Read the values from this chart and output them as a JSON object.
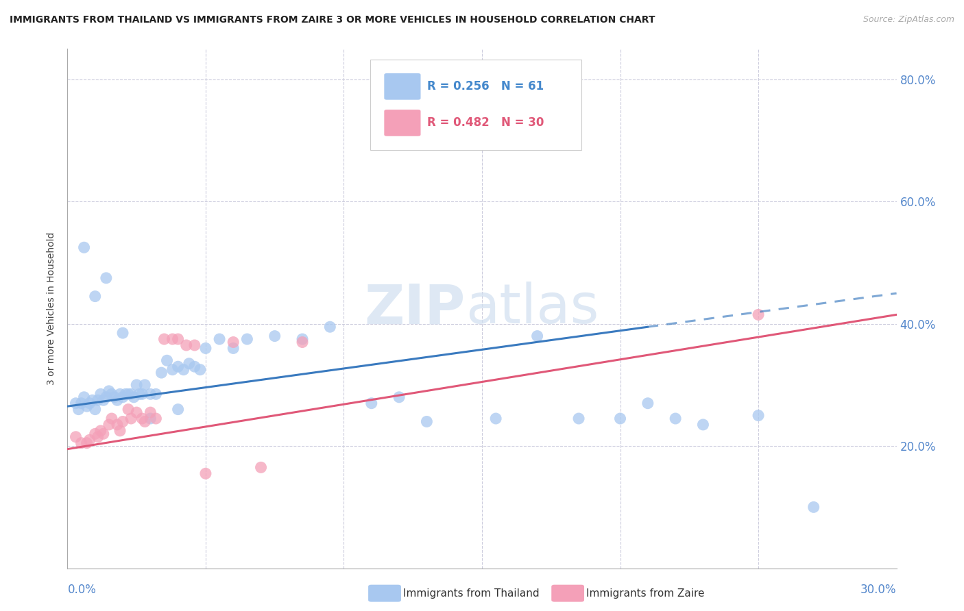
{
  "title": "IMMIGRANTS FROM THAILAND VS IMMIGRANTS FROM ZAIRE 3 OR MORE VEHICLES IN HOUSEHOLD CORRELATION CHART",
  "source": "Source: ZipAtlas.com",
  "ylabel": "3 or more Vehicles in Household",
  "xlim": [
    0.0,
    0.3
  ],
  "ylim": [
    0.0,
    0.85
  ],
  "legend1_R": "0.256",
  "legend1_N": "61",
  "legend2_R": "0.482",
  "legend2_N": "30",
  "color_thailand": "#a8c8f0",
  "color_zaire": "#f4a0b8",
  "line_color_thailand": "#3a7abf",
  "line_color_zaire": "#e05878",
  "background": "#ffffff",
  "ytick_vals": [
    0.2,
    0.4,
    0.6,
    0.8
  ],
  "ytick_labels": [
    "20.0%",
    "40.0%",
    "60.0%",
    "80.0%"
  ],
  "thailand_x": [
    0.003,
    0.004,
    0.005,
    0.006,
    0.007,
    0.008,
    0.009,
    0.01,
    0.011,
    0.012,
    0.013,
    0.014,
    0.015,
    0.016,
    0.017,
    0.018,
    0.019,
    0.02,
    0.021,
    0.022,
    0.023,
    0.024,
    0.025,
    0.026,
    0.027,
    0.028,
    0.03,
    0.032,
    0.034,
    0.036,
    0.038,
    0.04,
    0.042,
    0.044,
    0.046,
    0.048,
    0.05,
    0.055,
    0.06,
    0.065,
    0.075,
    0.085,
    0.095,
    0.11,
    0.12,
    0.13,
    0.155,
    0.17,
    0.185,
    0.2,
    0.21,
    0.22,
    0.23,
    0.25,
    0.27,
    0.006,
    0.01,
    0.014,
    0.02,
    0.03,
    0.04
  ],
  "thailand_y": [
    0.27,
    0.26,
    0.27,
    0.28,
    0.265,
    0.27,
    0.275,
    0.26,
    0.275,
    0.285,
    0.275,
    0.28,
    0.29,
    0.285,
    0.28,
    0.275,
    0.285,
    0.28,
    0.285,
    0.285,
    0.285,
    0.28,
    0.3,
    0.285,
    0.285,
    0.3,
    0.285,
    0.285,
    0.32,
    0.34,
    0.325,
    0.33,
    0.325,
    0.335,
    0.33,
    0.325,
    0.36,
    0.375,
    0.36,
    0.375,
    0.38,
    0.375,
    0.395,
    0.27,
    0.28,
    0.24,
    0.245,
    0.38,
    0.245,
    0.245,
    0.27,
    0.245,
    0.235,
    0.25,
    0.1,
    0.525,
    0.445,
    0.475,
    0.385,
    0.245,
    0.26
  ],
  "zaire_x": [
    0.003,
    0.005,
    0.007,
    0.008,
    0.01,
    0.011,
    0.012,
    0.013,
    0.015,
    0.016,
    0.018,
    0.019,
    0.02,
    0.022,
    0.023,
    0.025,
    0.027,
    0.028,
    0.03,
    0.032,
    0.035,
    0.038,
    0.04,
    0.043,
    0.046,
    0.05,
    0.06,
    0.07,
    0.085,
    0.25
  ],
  "zaire_y": [
    0.215,
    0.205,
    0.205,
    0.21,
    0.22,
    0.215,
    0.225,
    0.22,
    0.235,
    0.245,
    0.235,
    0.225,
    0.24,
    0.26,
    0.245,
    0.255,
    0.245,
    0.24,
    0.255,
    0.245,
    0.375,
    0.375,
    0.375,
    0.365,
    0.365,
    0.155,
    0.37,
    0.165,
    0.37,
    0.415
  ],
  "line_th_x0": 0.0,
  "line_th_y0": 0.265,
  "line_th_x1": 0.21,
  "line_th_y1": 0.395,
  "line_th_dash_x0": 0.21,
  "line_th_dash_y0": 0.395,
  "line_th_dash_x1": 0.3,
  "line_th_dash_y1": 0.45,
  "line_zr_x0": 0.0,
  "line_zr_y0": 0.195,
  "line_zr_x1": 0.3,
  "line_zr_y1": 0.415
}
